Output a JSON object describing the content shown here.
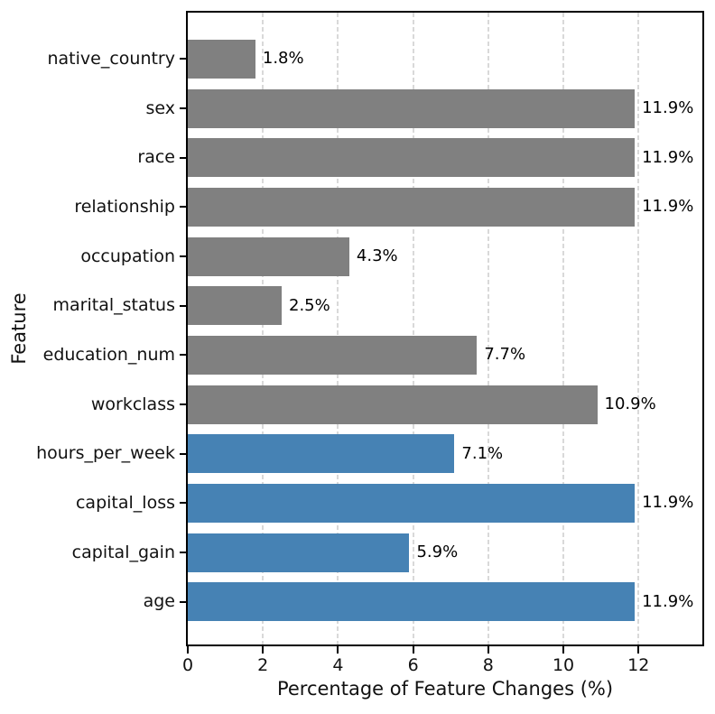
{
  "figure": {
    "background": "#ffffff",
    "plot_border_color": "#000000"
  },
  "chart_data": {
    "type": "bar",
    "orientation": "horizontal",
    "xlabel": "Percentage of Feature Changes (%)",
    "ylabel": "Feature",
    "categories": [
      "native_country",
      "sex",
      "race",
      "relationship",
      "occupation",
      "marital_status",
      "education_num",
      "workclass",
      "hours_per_week",
      "capital_loss",
      "capital_gain",
      "age"
    ],
    "values": [
      1.8,
      11.9,
      11.9,
      11.9,
      4.3,
      2.5,
      7.7,
      10.9,
      7.1,
      11.9,
      5.9,
      11.9
    ],
    "value_labels": [
      "1.8%",
      "11.9%",
      "11.9%",
      "11.9%",
      "4.3%",
      "2.5%",
      "7.7%",
      "10.9%",
      "7.1%",
      "11.9%",
      "5.9%",
      "11.9%"
    ],
    "bar_color_keys": [
      "gray",
      "gray",
      "gray",
      "gray",
      "gray",
      "gray",
      "gray",
      "gray",
      "blue",
      "blue",
      "blue",
      "blue"
    ],
    "colors": {
      "gray": "#808080",
      "blue": "#4682B4"
    },
    "xlim": [
      0,
      13.7
    ],
    "xticks": [
      0,
      2,
      4,
      6,
      8,
      10,
      12
    ],
    "xtick_labels": [
      "0",
      "2",
      "4",
      "6",
      "8",
      "10",
      "12"
    ],
    "grid": {
      "axis": "x",
      "style": "dashed",
      "color": "#d9d9d9",
      "position": "behind-bars"
    },
    "legend": "none"
  }
}
